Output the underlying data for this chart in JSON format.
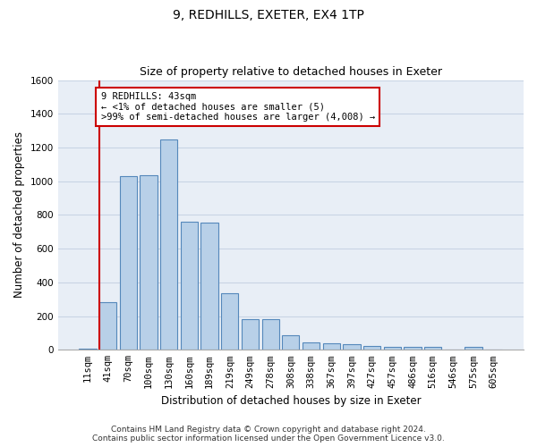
{
  "title": "9, REDHILLS, EXETER, EX4 1TP",
  "subtitle": "Size of property relative to detached houses in Exeter",
  "xlabel": "Distribution of detached houses by size in Exeter",
  "ylabel": "Number of detached properties",
  "footer_line1": "Contains HM Land Registry data © Crown copyright and database right 2024.",
  "footer_line2": "Contains public sector information licensed under the Open Government Licence v3.0.",
  "categories": [
    "11sqm",
    "41sqm",
    "70sqm",
    "100sqm",
    "130sqm",
    "160sqm",
    "189sqm",
    "219sqm",
    "249sqm",
    "278sqm",
    "308sqm",
    "338sqm",
    "367sqm",
    "397sqm",
    "427sqm",
    "457sqm",
    "486sqm",
    "516sqm",
    "546sqm",
    "575sqm",
    "605sqm"
  ],
  "values": [
    5,
    285,
    1030,
    1035,
    1250,
    760,
    755,
    335,
    180,
    180,
    85,
    45,
    40,
    35,
    25,
    20,
    20,
    15,
    2,
    15,
    2
  ],
  "bar_color": "#b8d0e8",
  "bar_edge_color": "#5588bb",
  "highlight_bar_index": 1,
  "highlight_edge_color": "#cc0000",
  "annotation_text": "9 REDHILLS: 43sqm\n← <1% of detached houses are smaller (5)\n>99% of semi-detached houses are larger (4,008) →",
  "annotation_box_color": "#ffffff",
  "annotation_box_edge": "#cc0000",
  "ylim": [
    0,
    1600
  ],
  "yticks": [
    0,
    200,
    400,
    600,
    800,
    1000,
    1200,
    1400,
    1600
  ],
  "grid_color": "#c8d4e4",
  "bg_color": "#ffffff",
  "plot_bg_color": "#e8eef6",
  "title_fontsize": 10,
  "subtitle_fontsize": 9,
  "axis_label_fontsize": 8.5,
  "tick_fontsize": 7.5,
  "footer_fontsize": 6.5,
  "annotation_fontsize": 7.5
}
